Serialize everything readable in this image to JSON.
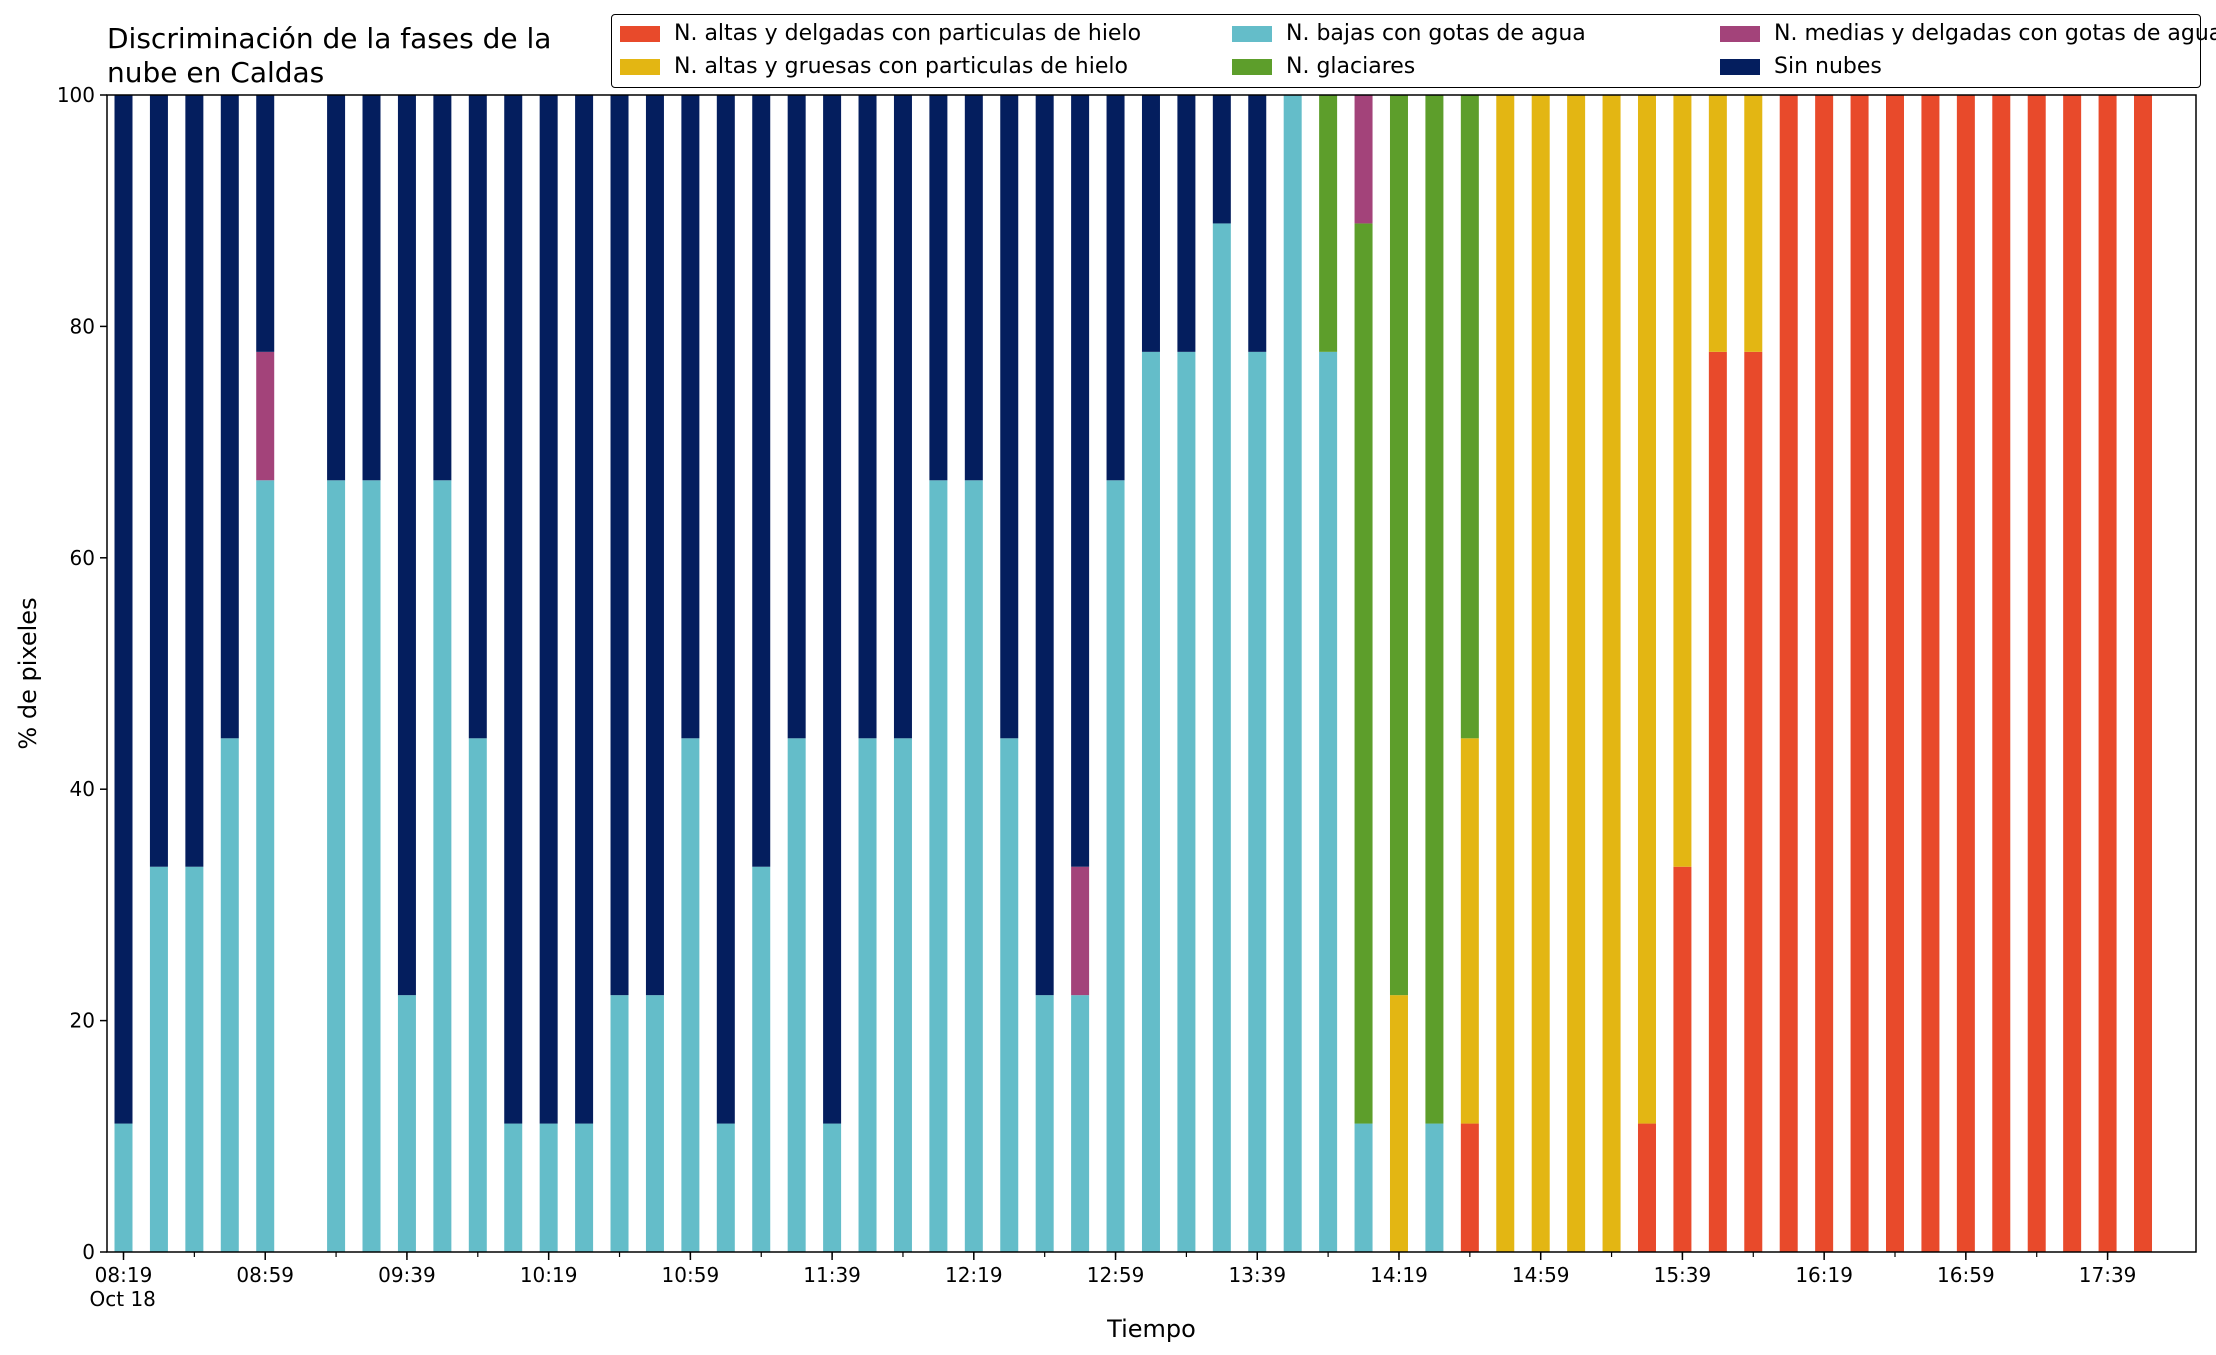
{
  "title": "Discriminación de la fases de la\nnube en Caldas",
  "chart_data": {
    "type": "bar",
    "stacked": true,
    "xlabel": "Tiempo",
    "ylabel": "% de pixeles",
    "ylim": [
      0,
      100
    ],
    "yticks": [
      0,
      20,
      40,
      60,
      80,
      100
    ],
    "xtick_labels": [
      "08:19\nOct 18",
      "08:59",
      "09:39",
      "10:19",
      "10:59",
      "11:39",
      "12:19",
      "12:59",
      "13:39",
      "14:19",
      "14:59",
      "15:39",
      "16:19",
      "16:59",
      "17:39"
    ],
    "legend_position": "top-right",
    "categories": [
      "08:19",
      "08:29",
      "08:39",
      "08:49",
      "08:59",
      "09:09",
      "09:19",
      "09:29",
      "09:39",
      "09:49",
      "09:59",
      "10:09",
      "10:19",
      "10:29",
      "10:39",
      "10:49",
      "10:59",
      "11:09",
      "11:19",
      "11:29",
      "11:39",
      "11:49",
      "11:59",
      "12:09",
      "12:19",
      "12:29",
      "12:39",
      "12:49",
      "12:59",
      "13:09",
      "13:19",
      "13:29",
      "13:39",
      "13:49",
      "13:59",
      "14:09",
      "14:19",
      "14:29",
      "14:39",
      "14:49",
      "14:59",
      "15:09",
      "15:19",
      "15:29",
      "15:39",
      "15:49",
      "15:59",
      "16:09",
      "16:19",
      "16:29",
      "16:39",
      "16:49",
      "16:59",
      "17:09",
      "17:19",
      "17:29",
      "17:39",
      "17:49"
    ],
    "series": [
      {
        "name": "N. altas y delgadas con particulas de hielo",
        "color": "#e84a2b",
        "values": [
          0,
          0,
          0,
          0,
          0,
          null,
          0,
          0,
          0,
          0,
          0,
          0,
          0,
          0,
          0,
          0,
          0,
          0,
          0,
          0,
          0,
          0,
          0,
          0,
          0,
          0,
          0,
          0,
          0,
          0,
          0,
          0,
          0,
          0,
          0,
          0,
          0,
          0,
          11.1,
          0,
          0,
          0,
          0,
          11.1,
          33.3,
          77.8,
          77.8,
          100,
          100,
          100,
          100,
          100,
          100,
          100,
          100,
          100,
          100,
          100
        ]
      },
      {
        "name": "N. altas y gruesas con particulas de hielo",
        "color": "#e3b613",
        "values": [
          0,
          0,
          0,
          0,
          0,
          null,
          0,
          0,
          0,
          0,
          0,
          0,
          0,
          0,
          0,
          0,
          0,
          0,
          0,
          0,
          0,
          0,
          0,
          0,
          0,
          0,
          0,
          0,
          0,
          0,
          0,
          0,
          0,
          0,
          0,
          0,
          22.2,
          0,
          33.3,
          100,
          100,
          100,
          100,
          88.9,
          66.7,
          22.2,
          22.2,
          0,
          0,
          0,
          0,
          0,
          0,
          0,
          0,
          0,
          0,
          0
        ]
      },
      {
        "name": "N. bajas con gotas de agua",
        "color": "#64bdc9",
        "values": [
          11.1,
          33.3,
          33.3,
          44.4,
          66.7,
          null,
          66.7,
          66.7,
          22.2,
          66.7,
          44.4,
          11.1,
          11.1,
          11.1,
          22.2,
          22.2,
          44.4,
          11.1,
          33.3,
          44.4,
          11.1,
          44.4,
          44.4,
          66.7,
          66.7,
          44.4,
          22.2,
          22.2,
          66.7,
          77.8,
          77.8,
          88.9,
          77.8,
          100,
          77.8,
          11.1,
          0,
          11.1,
          0,
          0,
          0,
          0,
          0,
          0,
          0,
          0,
          0,
          0,
          0,
          0,
          0,
          0,
          0,
          0,
          0,
          0,
          0,
          0
        ]
      },
      {
        "name": "N. glaciares",
        "color": "#5d9e2b",
        "values": [
          0,
          0,
          0,
          0,
          0,
          null,
          0,
          0,
          0,
          0,
          0,
          0,
          0,
          0,
          0,
          0,
          0,
          0,
          0,
          0,
          0,
          0,
          0,
          0,
          0,
          0,
          0,
          0,
          0,
          0,
          0,
          0,
          0,
          0,
          22.2,
          77.8,
          77.8,
          88.9,
          55.6,
          0,
          0,
          0,
          0,
          0,
          0,
          0,
          0,
          0,
          0,
          0,
          0,
          0,
          0,
          0,
          0,
          0,
          0,
          0
        ]
      },
      {
        "name": "N. medias y delgadas con gotas de agua",
        "color": "#a3437a",
        "values": [
          0,
          0,
          0,
          0,
          11.1,
          null,
          0,
          0,
          0,
          0,
          0,
          0,
          0,
          0,
          0,
          0,
          0,
          0,
          0,
          0,
          0,
          0,
          0,
          0,
          0,
          0,
          0,
          11.1,
          0,
          0,
          0,
          0,
          0,
          0,
          0,
          11.1,
          0,
          0,
          0,
          0,
          0,
          0,
          0,
          0,
          0,
          0,
          0,
          0,
          0,
          0,
          0,
          0,
          0,
          0,
          0,
          0,
          0,
          0
        ]
      },
      {
        "name": "Sin nubes",
        "color": "#041e5e",
        "values": [
          88.9,
          66.7,
          66.7,
          55.6,
          22.2,
          null,
          33.3,
          33.3,
          77.8,
          33.3,
          55.6,
          88.9,
          88.9,
          88.9,
          77.8,
          77.8,
          55.6,
          88.9,
          66.7,
          55.6,
          88.9,
          55.6,
          55.6,
          33.3,
          33.3,
          55.6,
          77.8,
          66.7,
          33.3,
          22.2,
          22.2,
          11.1,
          22.2,
          0,
          0,
          0,
          0,
          0,
          0,
          0,
          0,
          0,
          0,
          0,
          0,
          0,
          0,
          0,
          0,
          0,
          0,
          0,
          0,
          0,
          0,
          0,
          0,
          0
        ]
      }
    ]
  }
}
